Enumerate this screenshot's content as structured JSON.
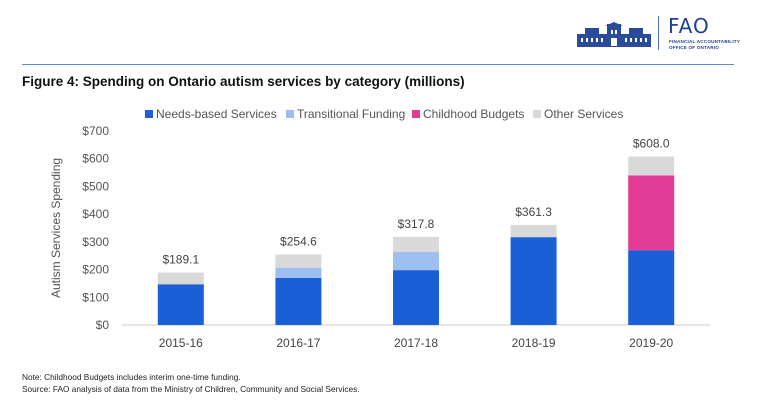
{
  "header": {
    "logo_abbr": "FAO",
    "logo_line1": "FINANCIAL ACCOUNTABILITY",
    "logo_line2": "OFFICE OF ONTARIO"
  },
  "figure_title": "Figure 4: Spending on Ontario autism services by category (millions)",
  "footnotes": {
    "note": "Note: Childhood Budgets includes interim one-time funding.",
    "source": "Source: FAO analysis of data from the Ministry of Children, Community and Social Services."
  },
  "chart_data": {
    "type": "bar",
    "stacked": true,
    "categories": [
      "2015-16",
      "2016-17",
      "2017-18",
      "2018-19",
      "2019-20"
    ],
    "series": [
      {
        "name": "Needs-based Services",
        "color": "#1a5fd6",
        "values": [
          147,
          170,
          198,
          317,
          270
        ]
      },
      {
        "name": "Transitional Funding",
        "color": "#9dbff0",
        "values": [
          0,
          37,
          66,
          0,
          0
        ]
      },
      {
        "name": "Childhood Budgets",
        "color": "#e23c96",
        "values": [
          0,
          0,
          0,
          0,
          270
        ]
      },
      {
        "name": "Other Services",
        "color": "#d9d9d9",
        "values": [
          42.1,
          47.6,
          53.8,
          44.3,
          68
        ]
      }
    ],
    "totals": [
      "$189.1",
      "$254.6",
      "$317.8",
      "$361.3",
      "$608.0"
    ],
    "ylabel": "Autism Services Spending",
    "ylim": [
      0,
      700
    ],
    "yticks": [
      0,
      100,
      200,
      300,
      400,
      500,
      600,
      700
    ],
    "ytick_labels": [
      "$0",
      "$100",
      "$200",
      "$300",
      "$400",
      "$500",
      "$600",
      "$700"
    ],
    "legend_position": "top",
    "grid": false
  }
}
